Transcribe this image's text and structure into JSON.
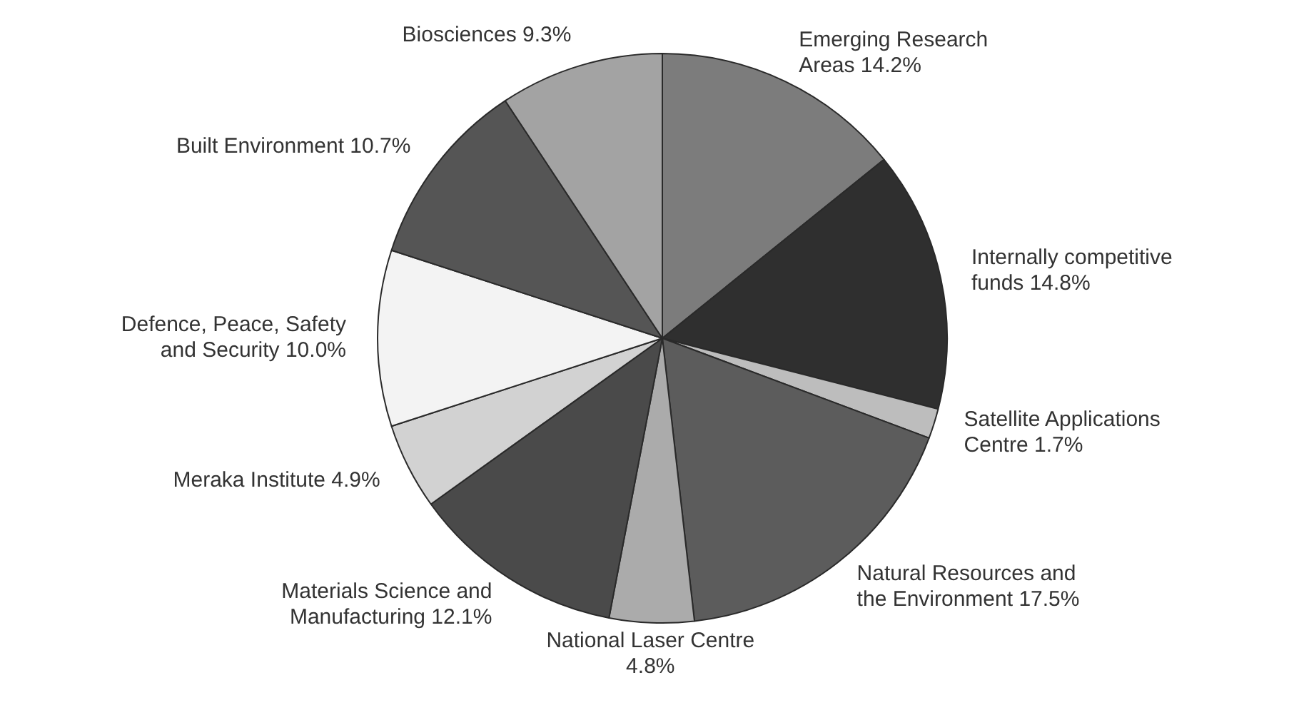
{
  "chart_data": {
    "type": "pie",
    "categories": [
      "Emerging Research Areas",
      "Internally competitive funds",
      "Satellite Applications Centre",
      "Natural Resources and the Environment",
      "National Laser Centre",
      "Materials Science and Manufacturing",
      "Meraka Institute",
      "Defence, Peace, Safety and Security",
      "Built Environment",
      "Biosciences"
    ],
    "values": [
      14.2,
      14.8,
      1.7,
      17.5,
      4.8,
      12.1,
      4.9,
      10.0,
      10.7,
      9.3
    ],
    "value_labels": [
      "14.2%",
      "14.8%",
      "1.7%",
      "17.5%",
      "4.8%",
      "12.1%",
      "4.9%",
      "10.0%",
      "10.7%",
      "9.3%"
    ],
    "colors": [
      "#7c7c7c",
      "#2f2f2f",
      "#bdbdbd",
      "#5c5c5c",
      "#ababab",
      "#4a4a4a",
      "#d2d2d2",
      "#f3f3f3",
      "#555555",
      "#a3a3a3"
    ],
    "legend": false
  }
}
